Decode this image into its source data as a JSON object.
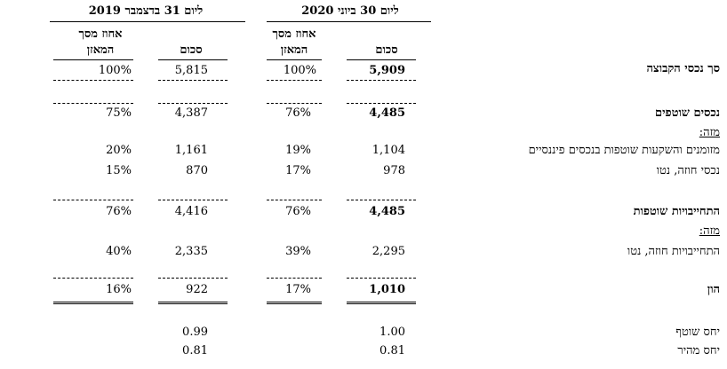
{
  "headers": {
    "period_2020": "ליום 30 ביוני 2020",
    "period_2019": "ליום 31 בדצמבר 2019",
    "pct_col_line1": "אחוז מסך",
    "pct_col_line2": "המאזן",
    "amount_col": "סכום"
  },
  "rows": [
    {
      "label": "סך נכסי הקבוצה",
      "amt2020": "5,909",
      "pct2020": "100%",
      "amt2019": "5,815",
      "pct2019": "100%"
    },
    {
      "label": "נכסים שוטפים",
      "amt2020": "4,485",
      "pct2020": "76%",
      "amt2019": "4,387",
      "pct2019": "75%"
    },
    {
      "label": "מזה:"
    },
    {
      "label": "מזומנים והשקעות שוטפות בנכסים פיננסיים",
      "amt2020": "1,104",
      "pct2020": "19%",
      "amt2019": "1,161",
      "pct2019": "20%"
    },
    {
      "label": "נכסי חוזה, נטו",
      "amt2020": "978",
      "pct2020": "17%",
      "amt2019": "870",
      "pct2019": "15%"
    },
    {
      "label": "התחייבויות שוטפות",
      "amt2020": "4,485",
      "pct2020": "76%",
      "amt2019": "4,416",
      "pct2019": "76%"
    },
    {
      "label": "מזה:"
    },
    {
      "label": "התחייבויות חוזה, נטו",
      "amt2020": "2,295",
      "pct2020": "39%",
      "amt2019": "2,335",
      "pct2019": "40%"
    },
    {
      "label": "הון",
      "amt2020": "1,010",
      "pct2020": "17%",
      "amt2019": "922",
      "pct2019": "16%"
    },
    {
      "label": "יחס שוטף",
      "amt2020": "1.00",
      "amt2019": "0.99"
    },
    {
      "label": "יחס מהיר",
      "amt2020": "0.81",
      "amt2019": "0.81"
    }
  ]
}
